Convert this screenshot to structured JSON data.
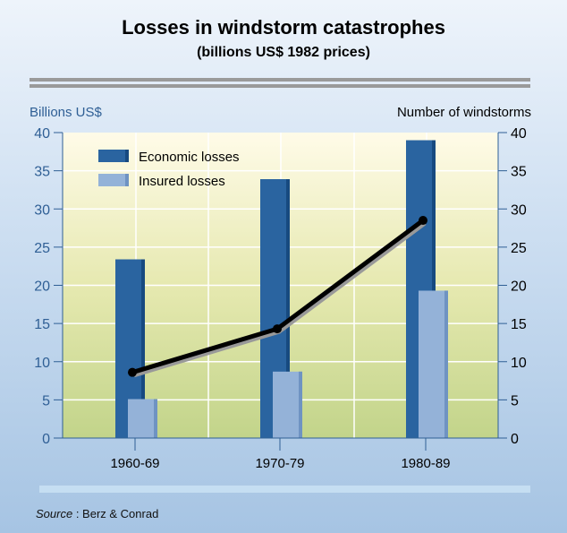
{
  "chart_data": {
    "type": "bar",
    "title": "Losses in windstorm catastrophes",
    "subtitle": "(billions US$ 1982 prices)",
    "ylabel": "Billions US$",
    "y2label": "Number of windstorms",
    "categories": [
      "1960-69",
      "1970-79",
      "1980-89"
    ],
    "ylim": [
      0,
      40
    ],
    "y2lim": [
      0,
      40
    ],
    "yticks": [
      0,
      5,
      10,
      15,
      20,
      25,
      30,
      35,
      40
    ],
    "legend_position": "top-left",
    "grid": true,
    "series": [
      {
        "name": "Economic losses",
        "type": "bar",
        "axis": "left",
        "color": "#2a64a0",
        "values": [
          23.4,
          33.9,
          39.0
        ]
      },
      {
        "name": "Insured losses",
        "type": "bar",
        "axis": "left",
        "color": "#94b2d8",
        "values": [
          5.1,
          8.7,
          19.3
        ]
      },
      {
        "name": "Number of windstorms",
        "type": "line",
        "axis": "right",
        "color": "#000000",
        "values": [
          8.6,
          14.3,
          28.5
        ]
      }
    ]
  },
  "source_label": "Source",
  "source_text": " : Berz & Conrad"
}
